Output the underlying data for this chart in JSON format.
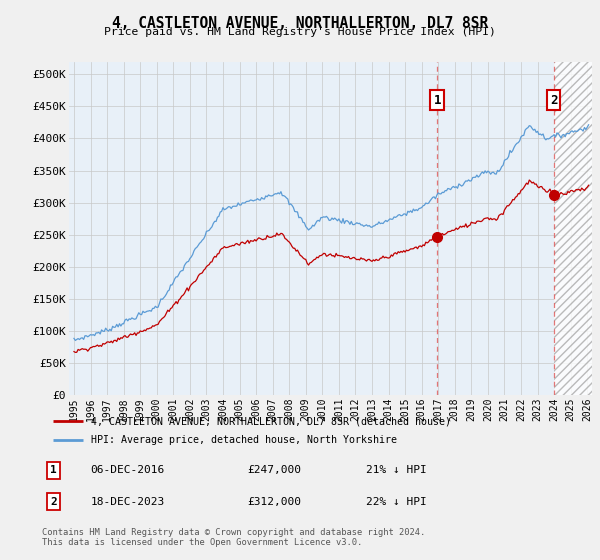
{
  "title": "4, CASTLETON AVENUE, NORTHALLERTON, DL7 8SR",
  "subtitle": "Price paid vs. HM Land Registry's House Price Index (HPI)",
  "ylabel_ticks": [
    "£0",
    "£50K",
    "£100K",
    "£150K",
    "£200K",
    "£250K",
    "£300K",
    "£350K",
    "£400K",
    "£450K",
    "£500K"
  ],
  "ytick_values": [
    0,
    50000,
    100000,
    150000,
    200000,
    250000,
    300000,
    350000,
    400000,
    450000,
    500000
  ],
  "ylim": [
    0,
    520000
  ],
  "xlim_start": 1994.7,
  "xlim_end": 2026.3,
  "xticks": [
    1995,
    1996,
    1997,
    1998,
    1999,
    2000,
    2001,
    2002,
    2003,
    2004,
    2005,
    2006,
    2007,
    2008,
    2009,
    2010,
    2011,
    2012,
    2013,
    2014,
    2015,
    2016,
    2017,
    2018,
    2019,
    2020,
    2021,
    2022,
    2023,
    2024,
    2025,
    2026
  ],
  "hpi_color": "#5b9bd5",
  "price_color": "#c00000",
  "vline1_x": 2016.94,
  "vline2_x": 2023.97,
  "hatch_start": 2024.0,
  "fill_bg_color": "#ddeeff",
  "plot_bg_color": "#e8f0f8",
  "legend_price_label": "4, CASTLETON AVENUE, NORTHALLERTON, DL7 8SR (detached house)",
  "legend_hpi_label": "HPI: Average price, detached house, North Yorkshire",
  "note1_num": "1",
  "note1_date": "06-DEC-2016",
  "note1_price": "£247,000",
  "note1_hpi": "21% ↓ HPI",
  "note2_num": "2",
  "note2_date": "18-DEC-2023",
  "note2_price": "£312,000",
  "note2_hpi": "22% ↓ HPI",
  "footer": "Contains HM Land Registry data © Crown copyright and database right 2024.\nThis data is licensed under the Open Government Licence v3.0.",
  "background_color": "#f0f0f0",
  "grid_color": "#c8c8c8",
  "dot1_x": 2016.94,
  "dot1_y": 247000,
  "dot2_x": 2023.97,
  "dot2_y": 312000
}
